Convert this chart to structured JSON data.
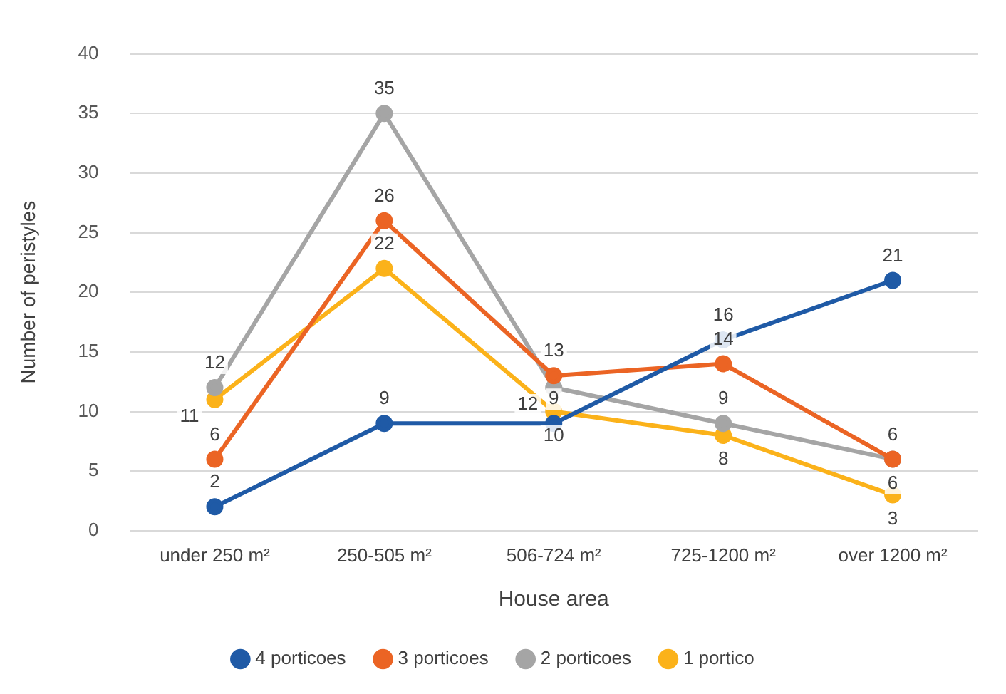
{
  "chart_data": {
    "type": "line",
    "xlabel": "House area",
    "ylabel": "Number of peristyles",
    "categories": [
      "under 250 m²",
      "250-505 m²",
      "506-724 m²",
      "725-1200 m²",
      "over 1200 m²"
    ],
    "series": [
      {
        "name": "4 porticoes",
        "color": "#1f5aa6",
        "values": [
          2,
          9,
          9,
          16,
          21
        ]
      },
      {
        "name": "3 porticoes",
        "color": "#eb6424",
        "values": [
          6,
          26,
          13,
          14,
          6
        ]
      },
      {
        "name": "2 porticoes",
        "color": "#a5a5a5",
        "values": [
          12,
          35,
          12,
          9,
          6
        ]
      },
      {
        "name": "1 portico",
        "color": "#fbb21a",
        "values": [
          11,
          22,
          10,
          8,
          3
        ]
      }
    ],
    "ylim": [
      0,
      40
    ],
    "yticks": [
      0,
      5,
      10,
      15,
      20,
      25,
      30,
      35,
      40
    ],
    "grid": "y",
    "legend": "bottom",
    "marker": "circle",
    "line_style": "solid",
    "data_labels": true
  }
}
